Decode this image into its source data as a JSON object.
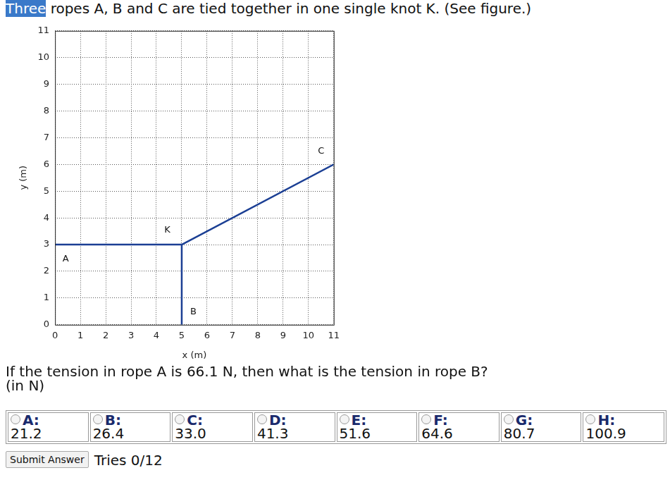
{
  "title_parts": [
    "Three",
    "ropes A, B and C are tied together in one single knot K. (See figure.)"
  ],
  "chart_data": {
    "type": "line",
    "x_label": "x (m)",
    "y_label": "y (m)",
    "xlim": [
      0,
      11
    ],
    "ylim": [
      0,
      11
    ],
    "xticks": [
      0,
      1,
      2,
      3,
      4,
      5,
      6,
      7,
      8,
      9,
      10,
      11
    ],
    "yticks": [
      0,
      1,
      2,
      3,
      4,
      5,
      6,
      7,
      8,
      9,
      10,
      11
    ],
    "grid": true,
    "series": [
      {
        "color": "#1b3f94",
        "x": [
          0,
          5
        ],
        "values": [
          3,
          3
        ]
      },
      {
        "color": "#1b3f94",
        "x": [
          5,
          5
        ],
        "values": [
          0,
          3
        ]
      },
      {
        "color": "#1b3f94",
        "x": [
          5,
          11
        ],
        "values": [
          3,
          6
        ]
      }
    ],
    "annotations": [
      {
        "text": "A",
        "x": 0.42,
        "y": 2.47
      },
      {
        "text": "K",
        "x": 4.43,
        "y": 3.55
      },
      {
        "text": "B",
        "x": 5.46,
        "y": 0.47
      },
      {
        "text": "C",
        "x": 10.5,
        "y": 6.5
      }
    ]
  },
  "question": [
    "If the tension in rope A is 66.1 N, then what is the tension in rope B?",
    "(in N)"
  ],
  "options": [
    {
      "letter": "A:",
      "value": "21.2"
    },
    {
      "letter": "B:",
      "value": "26.4"
    },
    {
      "letter": "C:",
      "value": "33.0"
    },
    {
      "letter": "D:",
      "value": "41.3"
    },
    {
      "letter": "E:",
      "value": "51.6"
    },
    {
      "letter": "F:",
      "value": "64.6"
    },
    {
      "letter": "G:",
      "value": "80.7"
    },
    {
      "letter": "H:",
      "value": "100.9"
    }
  ],
  "button": "Submit Answer",
  "tries": "Tries 0/12"
}
